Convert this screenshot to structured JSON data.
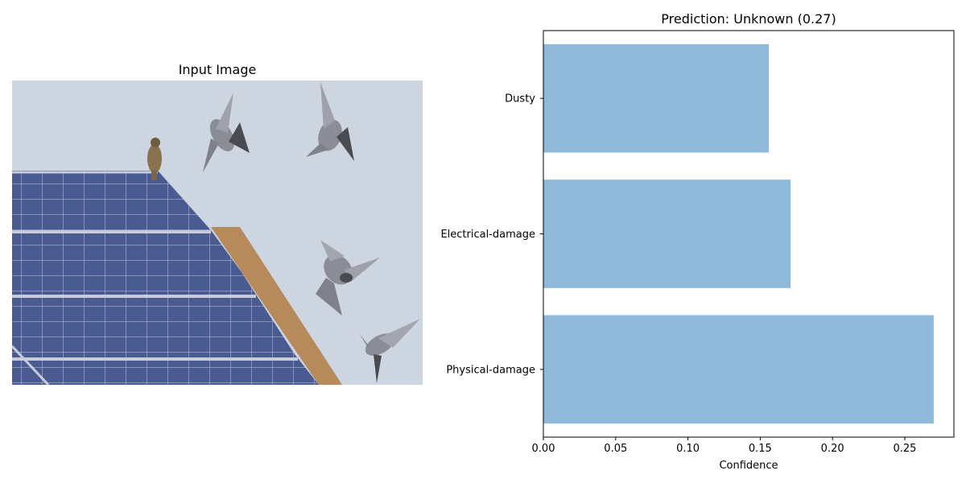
{
  "image_panel": {
    "title": "Input Image"
  },
  "chart_data": {
    "type": "bar",
    "orientation": "horizontal",
    "title": "Prediction: Unknown (0.27)",
    "xlabel": "Confidence",
    "ylabel": "",
    "categories": [
      "Physical-damage",
      "Electrical-damage",
      "Dusty"
    ],
    "values": [
      0.27,
      0.171,
      0.156
    ],
    "xlim": [
      0,
      0.284
    ],
    "xticks": [
      0.0,
      0.05,
      0.1,
      0.15,
      0.2,
      0.25
    ],
    "xtick_labels": [
      "0.00",
      "0.05",
      "0.10",
      "0.15",
      "0.20",
      "0.25"
    ],
    "bar_color": "#8fb9d8",
    "grid": false,
    "legend": "none"
  }
}
